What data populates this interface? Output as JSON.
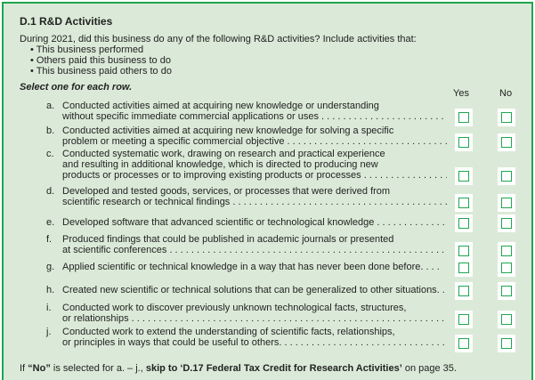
{
  "title": "D.1 R&D Activities",
  "intro": "During 2021, did this business do any of the following R&D activities? Include activities that:",
  "bullets": [
    "• This business performed",
    "• Others paid this business to do",
    "• This business paid others to do"
  ],
  "instruction": "Select one for each row.",
  "columns": {
    "yes": "Yes",
    "no": "No"
  },
  "rows": [
    {
      "letter": "a.",
      "lines": [
        "Conducted activities aimed at acquiring new knowledge or understanding",
        "without specific immediate commercial applications or uses . . . . . . . . . . . . . . . . . . . . . . . . . . . . . . . . . . ."
      ]
    },
    {
      "letter": "b.",
      "lines": [
        "Conducted activities aimed at acquiring new knowledge for solving a specific",
        "problem or meeting a specific commercial objective . . . . . . . . . . . . . . . . . . . . . . . . . . . . . . . . . . . . . ."
      ]
    },
    {
      "letter": "c.",
      "lines": [
        "Conducted systematic work, drawing on research and practical experience",
        "and resulting in additional knowledge, which is directed to producing new",
        "products or processes or to improving existing products or processes . . . . . . . . . . . . . . . . . . ."
      ]
    },
    {
      "letter": "d.",
      "lines": [
        "Developed and tested goods, services, or processes that were derived from",
        "scientific research or technical findings . . . . . . . . . . . . . . . . . . . . . . . . . . . . . . . . . . . . . . . . . . . . ."
      ]
    },
    {
      "letter": "e.",
      "lines": [
        "Developed software that advanced scientific or technological knowledge . . . . . . . . . . . . . . . . . . ."
      ]
    },
    {
      "letter": "f.",
      "lines": [
        "Produced findings that could be published in academic journals or presented",
        "at scientific conferences . . . . . . . . . . . . . . . . . . . . . . . . . . . . . . . . . . . . . . . . . . . . . . . . . . . . . . . . . ."
      ]
    },
    {
      "letter": "g.",
      "lines": [
        "Applied scientific or technical knowledge in a way that has never been done before. . . ."
      ]
    },
    {
      "letter": "h.",
      "lines": [
        "Created new scientific or technical solutions that can be generalized to other situations. ."
      ]
    },
    {
      "letter": "i.",
      "lines": [
        "Conducted work to discover previously unknown technological facts, structures,",
        "or relationships . . . . . . . . . . . . . . . . . . . . . . . . . . . . . . . . . . . . . . . . . . . . . . . . . . . . . . . . . . . . . . . ."
      ]
    },
    {
      "letter": "j.",
      "lines": [
        "Conducted work to extend the understanding of scientific facts, relationships,",
        "or principles in ways that could be useful to others. . . . . . . . . . . . . . . . . . . . . . . . . . . . . . . . . ."
      ]
    }
  ],
  "footer": {
    "p1": "If ",
    "no": "“No”",
    "p2": " is selected for a. – j., ",
    "skip": "skip to ‘D.17 Federal Tax Credit for Research Activities’",
    "p3": " on page 35."
  }
}
